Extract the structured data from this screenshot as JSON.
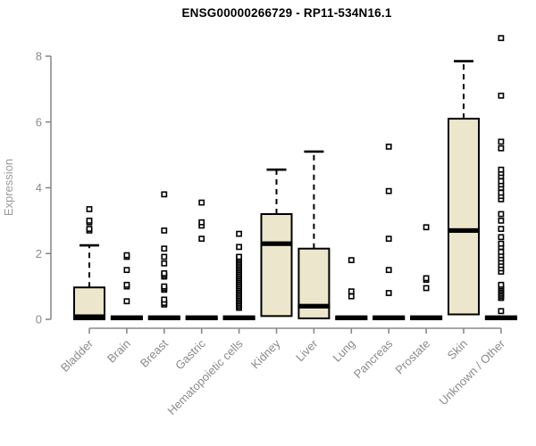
{
  "chart_data": {
    "type": "boxplot",
    "title": "ENSG00000266729 - RP11-534N16.1",
    "ylabel": "Expression",
    "xlabel": "",
    "ylim": [
      0,
      8.6
    ],
    "yticks": [
      0,
      2,
      4,
      6,
      8
    ],
    "grid": false,
    "legend": "none",
    "colors": {
      "box_fill": "#ece7cc",
      "box_stroke": "#000000",
      "axis": "#8a8a8a",
      "title": "#000000"
    },
    "categories": [
      "Bladder",
      "Brain",
      "Breast",
      "Gastric",
      "Hematopoietic cells",
      "Kidney",
      "Liver",
      "Lung",
      "Pancreas",
      "Prostate",
      "Skin",
      "Unknown / Other"
    ],
    "boxes": [
      {
        "category": "Bladder",
        "q1": 0,
        "median": 0.08,
        "q3": 0.97,
        "whisker_low": 0,
        "whisker_high": 2.25,
        "outliers": [
          2.7,
          2.75,
          2.95,
          3.0,
          3.35
        ]
      },
      {
        "category": "Brain",
        "q1": 0,
        "median": 0.05,
        "q3": 0.06,
        "whisker_low": 0,
        "whisker_high": 0.06,
        "outliers": [
          0.55,
          1.0,
          1.05,
          1.5,
          1.9,
          1.95
        ]
      },
      {
        "category": "Breast",
        "q1": 0,
        "median": 0.05,
        "q3": 0.06,
        "whisker_low": 0,
        "whisker_high": 0.06,
        "outliers": [
          0.45,
          0.5,
          0.6,
          0.9,
          0.95,
          1.0,
          1.3,
          1.35,
          1.4,
          1.7,
          1.9,
          2.15,
          2.7,
          3.8
        ]
      },
      {
        "category": "Gastric",
        "q1": 0,
        "median": 0.05,
        "q3": 0.06,
        "whisker_low": 0,
        "whisker_high": 0.06,
        "outliers": [
          2.45,
          2.85,
          2.95,
          3.55
        ]
      },
      {
        "category": "Hematopoietic cells",
        "q1": 0,
        "median": 0.05,
        "q3": 0.06,
        "whisker_low": 0,
        "whisker_high": 0.06,
        "outliers": [
          0.35,
          0.4,
          0.45,
          0.5,
          0.55,
          0.6,
          0.65,
          0.7,
          0.75,
          0.8,
          0.85,
          0.9,
          0.95,
          1.0,
          1.05,
          1.1,
          1.15,
          1.2,
          1.25,
          1.3,
          1.35,
          1.4,
          1.45,
          1.5,
          1.55,
          1.6,
          1.65,
          1.7,
          1.75,
          1.8,
          1.85,
          1.9,
          2.2,
          2.6
        ]
      },
      {
        "category": "Kidney",
        "q1": 0.1,
        "median": 2.3,
        "q3": 3.2,
        "whisker_low": 0.1,
        "whisker_high": 4.55,
        "outliers": []
      },
      {
        "category": "Liver",
        "q1": 0.03,
        "median": 0.4,
        "q3": 2.15,
        "whisker_low": 0.03,
        "whisker_high": 5.1,
        "outliers": []
      },
      {
        "category": "Lung",
        "q1": 0,
        "median": 0.05,
        "q3": 0.06,
        "whisker_low": 0,
        "whisker_high": 0.06,
        "outliers": [
          0.7,
          0.85,
          1.8
        ]
      },
      {
        "category": "Pancreas",
        "q1": 0,
        "median": 0.05,
        "q3": 0.06,
        "whisker_low": 0,
        "whisker_high": 0.06,
        "outliers": [
          0.8,
          1.5,
          2.45,
          3.9,
          5.25
        ]
      },
      {
        "category": "Prostate",
        "q1": 0,
        "median": 0.05,
        "q3": 0.06,
        "whisker_low": 0,
        "whisker_high": 0.06,
        "outliers": [
          0.95,
          1.2,
          1.25,
          2.8
        ]
      },
      {
        "category": "Skin",
        "q1": 0.15,
        "median": 2.7,
        "q3": 6.1,
        "whisker_low": 0.15,
        "whisker_high": 7.85,
        "outliers": []
      },
      {
        "category": "Unknown / Other",
        "q1": 0,
        "median": 0.05,
        "q3": 0.06,
        "whisker_low": 0,
        "whisker_high": 0.06,
        "outliers": [
          0.25,
          0.65,
          0.7,
          0.75,
          0.8,
          0.85,
          0.9,
          0.95,
          1.0,
          1.05,
          1.45,
          1.55,
          1.65,
          1.75,
          1.85,
          1.95,
          2.05,
          2.2,
          2.3,
          2.5,
          2.75,
          3.0,
          3.2,
          3.65,
          3.75,
          3.85,
          4.0,
          4.1,
          4.2,
          4.35,
          4.45,
          4.55,
          5.2,
          5.4,
          6.8,
          8.55
        ]
      }
    ]
  }
}
